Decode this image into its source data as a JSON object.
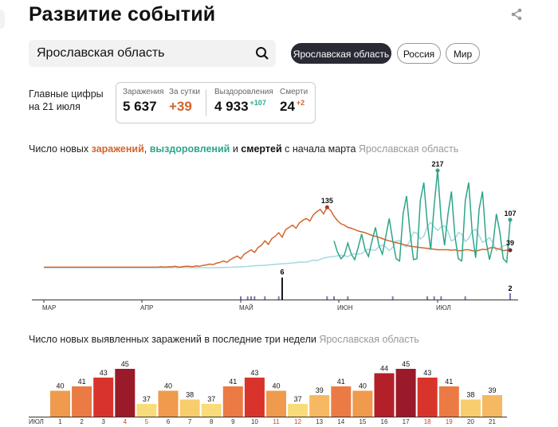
{
  "header": {
    "title": "Развитие событий"
  },
  "search": {
    "value": "Ярославская область"
  },
  "region_tabs": [
    {
      "label": "Ярославская область",
      "active": true
    },
    {
      "label": "Россия",
      "active": false
    },
    {
      "label": "Мир",
      "active": false
    }
  ],
  "main_figures": {
    "label_line1": "Главные цифры",
    "label_line2": "на 21 июля",
    "infected": {
      "label": "Заражения",
      "value": "5 637"
    },
    "per_day": {
      "label": "За сутки",
      "value": "+39"
    },
    "recovered": {
      "label": "Выздоровления",
      "value": "4 933",
      "delta": "+107"
    },
    "deaths": {
      "label": "Смерти",
      "value": "24",
      "delta": "+2"
    }
  },
  "chart1_title": {
    "p1": "Число новых ",
    "infections": "заражений",
    "p2": ", ",
    "recoveries": "выздоровлений",
    "p3": " и ",
    "deaths": "смертей",
    "p4": " с начала марта ",
    "region": "Ярославская область"
  },
  "chart2_title": {
    "text": "Число новых выявленных заражений в последние три недели ",
    "region": "Ярославская область"
  },
  "colors": {
    "infections": "#d2652d",
    "recoveries_line": "#2ea58a",
    "recoveries_light": "#a8dbe3",
    "deaths": "#1a1a1a",
    "deaths_bars": "#7a7ab0"
  },
  "chart_data": [
    {
      "type": "line",
      "x_range": [
        "2020-03-01",
        "2020-07-21"
      ],
      "month_ticks": [
        "МАР",
        "АПР",
        "МАЙ",
        "ИЮН",
        "ИЮЛ"
      ],
      "annotations": {
        "infections_peak": "135",
        "recoveries_peak": "217",
        "recoveries_last": "107",
        "infections_last": "39",
        "deaths_peak": "6",
        "deaths_last": "2"
      },
      "series": [
        {
          "key": "infections",
          "values": [
            1,
            1,
            1,
            1,
            1,
            1,
            1,
            1,
            1,
            1,
            1,
            1,
            1,
            1,
            1,
            1,
            1,
            1,
            1,
            1,
            1,
            1,
            1,
            1,
            1,
            1,
            1,
            1,
            1,
            1,
            1,
            1,
            1,
            1,
            2,
            1,
            2,
            2,
            3,
            1,
            2,
            3,
            3,
            2,
            4,
            3,
            5,
            6,
            8,
            7,
            10,
            12,
            15,
            12,
            18,
            22,
            26,
            20,
            30,
            35,
            40,
            34,
            45,
            50,
            60,
            52,
            65,
            70,
            78,
            68,
            85,
            90,
            95,
            88,
            100,
            106,
            110,
            104,
            118,
            125,
            130,
            120,
            135,
            128,
            115,
            105,
            98,
            95,
            90,
            88,
            85,
            82,
            80,
            78,
            75,
            72,
            70,
            68,
            65,
            62,
            60,
            58,
            56,
            54,
            52,
            50,
            48,
            47,
            46,
            45,
            44,
            43,
            42,
            41,
            40,
            40,
            40,
            40,
            39,
            40,
            38,
            38,
            40,
            40,
            38,
            37,
            39,
            41,
            40,
            44,
            45,
            43,
            41,
            38,
            39,
            39
          ]
        },
        {
          "key": "recoveries",
          "values": [
            0,
            0,
            0,
            0,
            0,
            0,
            0,
            0,
            0,
            0,
            0,
            0,
            0,
            0,
            0,
            0,
            0,
            0,
            0,
            0,
            0,
            0,
            0,
            0,
            0,
            0,
            0,
            0,
            0,
            0,
            0,
            0,
            0,
            0,
            0,
            0,
            0,
            0,
            0,
            0,
            0,
            0,
            0,
            0,
            0,
            0,
            0,
            0,
            0,
            0,
            0,
            0,
            1,
            2,
            0,
            1,
            2,
            3,
            2,
            4,
            6,
            3,
            5,
            8,
            12,
            6,
            4,
            10,
            15,
            8,
            14,
            20,
            10,
            6,
            16,
            25,
            12,
            30,
            18,
            8,
            26,
            40,
            15,
            32,
            60,
            35,
            20,
            28,
            55,
            30,
            18,
            45,
            75,
            40,
            25,
            60,
            90,
            50,
            30,
            70,
            110,
            60,
            20,
            15,
            120,
            160,
            80,
            18,
            20,
            150,
            190,
            100,
            40,
            140,
            217,
            110,
            50,
            120,
            170,
            70,
            20,
            15,
            150,
            190,
            80,
            22,
            130,
            170,
            60,
            18,
            50,
            120,
            80,
            20,
            12,
            107
          ]
        },
        {
          "key": "deaths",
          "values": [
            0,
            0,
            0,
            0,
            0,
            0,
            0,
            0,
            0,
            0,
            0,
            0,
            0,
            0,
            0,
            0,
            0,
            0,
            0,
            0,
            0,
            0,
            0,
            0,
            0,
            0,
            0,
            0,
            0,
            0,
            0,
            0,
            0,
            0,
            0,
            0,
            0,
            0,
            0,
            0,
            0,
            0,
            0,
            0,
            0,
            0,
            0,
            0,
            0,
            0,
            0,
            0,
            0,
            0,
            0,
            0,
            0,
            1,
            0,
            1,
            1,
            1,
            0,
            0,
            1,
            0,
            0,
            0,
            1,
            6,
            0,
            0,
            0,
            0,
            0,
            0,
            0,
            0,
            0,
            0,
            0,
            0,
            1,
            0,
            1,
            0,
            0,
            0,
            1,
            0,
            0,
            0,
            0,
            0,
            0,
            0,
            0,
            0,
            0,
            0,
            0,
            1,
            0,
            0,
            0,
            0,
            0,
            0,
            0,
            0,
            0,
            1,
            0,
            1,
            0,
            1,
            0,
            0,
            0,
            0,
            0,
            0,
            1,
            0,
            0,
            0,
            0,
            0,
            0,
            0,
            0,
            0,
            0,
            0,
            0,
            2
          ]
        }
      ]
    },
    {
      "type": "bar",
      "month_label": "ИЮЛ",
      "categories": [
        "1",
        "2",
        "3",
        "4",
        "5",
        "6",
        "7",
        "8",
        "9",
        "10",
        "11",
        "12",
        "13",
        "14",
        "15",
        "16",
        "17",
        "18",
        "19",
        "20",
        "21"
      ],
      "weekend_days": [
        "4",
        "5",
        "11",
        "12",
        "18",
        "19"
      ],
      "values": [
        40,
        41,
        43,
        45,
        37,
        40,
        38,
        37,
        41,
        43,
        40,
        37,
        39,
        41,
        40,
        44,
        45,
        43,
        41,
        38,
        39
      ],
      "labels": [
        "40",
        "41",
        "43",
        "45",
        "37",
        "40",
        "38",
        "37",
        "41",
        "43",
        "40",
        "37",
        "39",
        "41",
        "40",
        "44",
        "45",
        "43",
        "41",
        "38",
        "39"
      ],
      "color_scale": {
        "37": "#f9dc7a",
        "38": "#f8cd6e",
        "39": "#f6b860",
        "40": "#ef9a4c",
        "41": "#ec7a45",
        "43": "#d9342b",
        "44": "#b3202a",
        "45": "#9b1a2a"
      }
    }
  ]
}
